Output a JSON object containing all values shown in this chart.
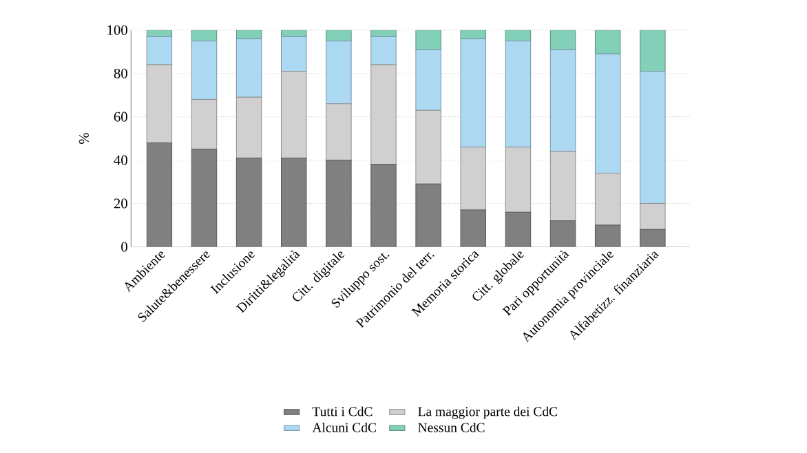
{
  "chart_data": {
    "type": "bar",
    "stacked": true,
    "ylabel": "%",
    "categories": [
      "Ambiente",
      "Salute&benessere",
      "Inclusione",
      "Diritti&legalità",
      "Citt. digitale",
      "Sviluppo sost.",
      "Patrimonio del terr.",
      "Memoria storica",
      "Citt. globale",
      "Pari opportunità",
      "Autonomia provinciale",
      "Alfabetizz. finanziaria"
    ],
    "series": [
      {
        "name": "Tutti i CdC",
        "color": "#808080",
        "values": [
          48,
          45,
          41,
          41,
          40,
          38,
          29,
          17,
          16,
          12,
          10,
          8
        ]
      },
      {
        "name": "La maggior parte dei CdC",
        "color": "#d0d0d0",
        "values": [
          36,
          23,
          28,
          40,
          26,
          46,
          34,
          29,
          30,
          32,
          24,
          12
        ]
      },
      {
        "name": "Alcuni CdC",
        "color": "#add8f2",
        "values": [
          13,
          27,
          27,
          16,
          29,
          13,
          28,
          50,
          49,
          47,
          55,
          61
        ]
      },
      {
        "name": "Nessun CdC",
        "color": "#82d0b8",
        "values": [
          3,
          5,
          4,
          3,
          5,
          3,
          9,
          4,
          5,
          9,
          11,
          19
        ]
      }
    ],
    "ylim": [
      0,
      100
    ],
    "yticks": [
      0,
      20,
      40,
      60,
      80,
      100
    ],
    "grid": "y",
    "legend": "bottom"
  }
}
